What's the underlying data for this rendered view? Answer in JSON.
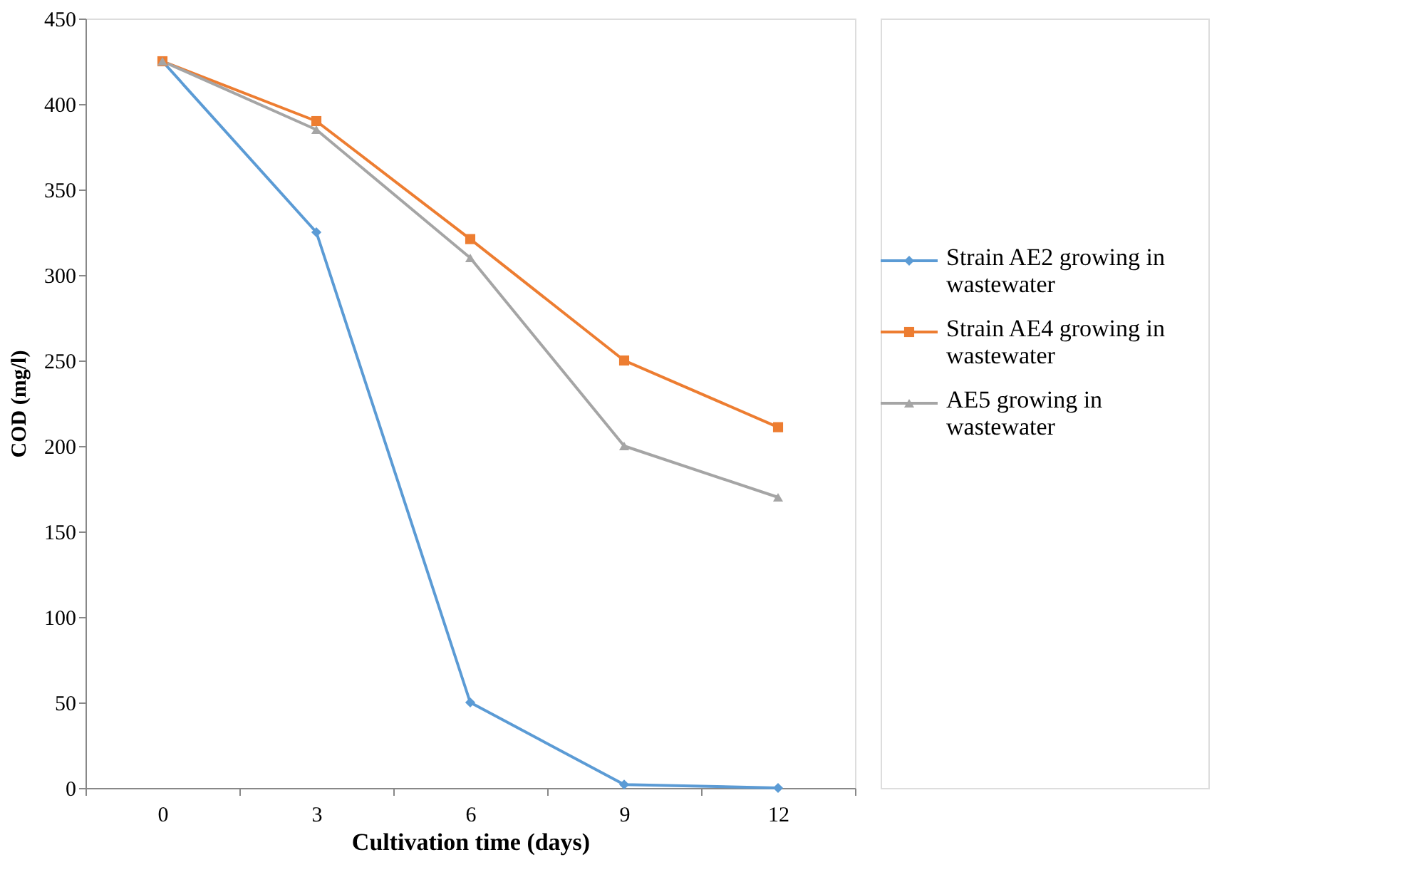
{
  "chart_data": {
    "type": "line",
    "xlabel": "Cultivation time (days)",
    "ylabel": "COD (mg/l)",
    "categories": [
      "0",
      "3",
      "6",
      "9",
      "12"
    ],
    "series": [
      {
        "name": "Strain AE2 growing in wastewater",
        "color": "#5b9bd5",
        "marker": "diamond",
        "values": [
          425,
          325,
          50,
          2,
          0
        ]
      },
      {
        "name": "Strain AE4 growing in wastewater",
        "color": "#ed7d31",
        "marker": "square",
        "values": [
          425,
          390,
          321,
          250,
          211
        ]
      },
      {
        "name": "AE5 growing in wastewater",
        "color": "#a5a5a5",
        "marker": "triangle",
        "values": [
          425,
          385,
          310,
          200,
          170
        ]
      }
    ],
    "ylim": [
      0,
      450
    ],
    "yticks": [
      0,
      50,
      100,
      150,
      200,
      250,
      300,
      350,
      400,
      450
    ],
    "grid": false,
    "legend": "right",
    "line_style": "solid"
  }
}
